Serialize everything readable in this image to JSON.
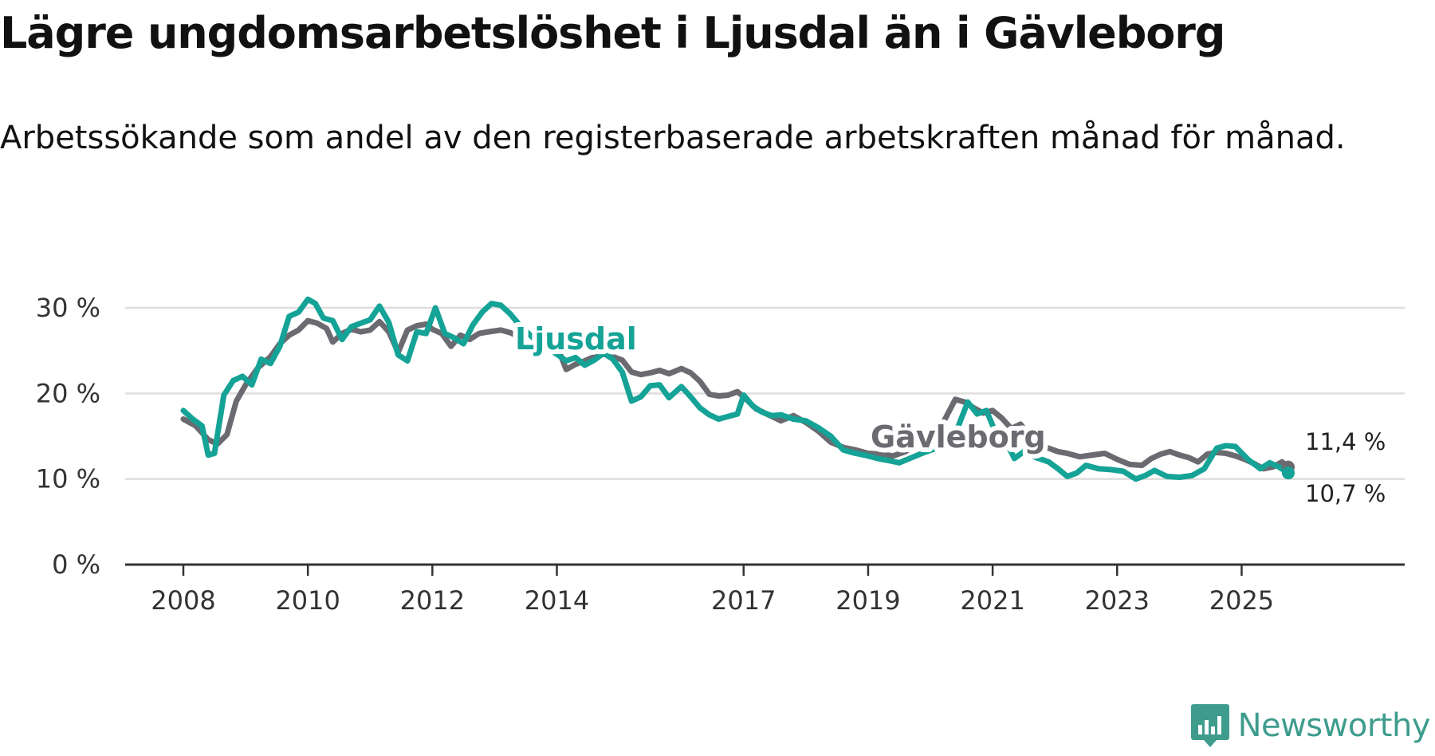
{
  "header": {
    "title": "Lägre ungdomsarbetslöshet i Ljusdal än i Gävleborg",
    "subtitle": "Arbetssökande som andel av den registerbaserade arbetskraften månad för månad."
  },
  "brand": {
    "name": "Newsworthy",
    "icon": "newsworthy-logo-icon",
    "color": "#3e9c8d"
  },
  "chart_data": {
    "type": "line",
    "title": "Lägre ungdomsarbetslöshet i Ljusdal än i Gävleborg",
    "subtitle": "Arbetssökande som andel av den registerbaserade arbetskraften månad för månad.",
    "xlabel": "",
    "ylabel": "",
    "xlim": [
      2008,
      2026.8
    ],
    "ylim": [
      0,
      30
    ],
    "grid": true,
    "x_ticks": [
      2008,
      2010,
      2012,
      2014,
      2017,
      2019,
      2021,
      2023,
      2025
    ],
    "x_tick_labels": [
      "2008",
      "2010",
      "2012",
      "2014",
      "2017",
      "2019",
      "2021",
      "2023",
      "2025"
    ],
    "y_ticks": [
      0,
      10,
      20,
      30
    ],
    "y_tick_labels": [
      "0 %",
      "10 %",
      "20 %",
      "30 %"
    ],
    "series": [
      {
        "name": "Gävleborg",
        "label": "Gävleborg",
        "color": "#6b6a71",
        "end_label": "11,4 %",
        "end_value": 11.4,
        "x": [
          2008.0,
          2008.2,
          2008.4,
          2008.55,
          2008.7,
          2008.85,
          2009.0,
          2009.2,
          2009.4,
          2009.55,
          2009.7,
          2009.85,
          2010.0,
          2010.15,
          2010.3,
          2010.4,
          2010.55,
          2010.7,
          2010.85,
          2011.0,
          2011.15,
          2011.3,
          2011.45,
          2011.6,
          2011.75,
          2011.9,
          2012.0,
          2012.15,
          2012.3,
          2012.45,
          2012.6,
          2012.75,
          2012.9,
          2013.1,
          2013.25,
          2013.4,
          2013.6,
          2013.8,
          2014.0,
          2014.15,
          2014.3,
          2014.45,
          2014.6,
          2014.75,
          2014.9,
          2015.05,
          2015.2,
          2015.35,
          2015.5,
          2015.65,
          2015.8,
          2016.0,
          2016.15,
          2016.3,
          2016.45,
          2016.6,
          2016.75,
          2016.9,
          2017.0,
          2017.2,
          2017.4,
          2017.6,
          2017.8,
          2018.0,
          2018.2,
          2018.4,
          2018.6,
          2018.8,
          2019.0,
          2019.2,
          2019.4,
          2019.6,
          2019.8,
          2020.0,
          2020.2,
          2020.4,
          2020.55,
          2020.7,
          2020.85,
          2021.0,
          2021.15,
          2021.3,
          2021.45,
          2021.6,
          2021.75,
          2021.9,
          2022.05,
          2022.2,
          2022.4,
          2022.6,
          2022.8,
          2023.0,
          2023.2,
          2023.4,
          2023.55,
          2023.7,
          2023.85,
          2024.0,
          2024.15,
          2024.3,
          2024.45,
          2024.6,
          2024.75,
          2024.9,
          2025.05,
          2025.2,
          2025.35,
          2025.5,
          2025.65,
          2025.75
        ],
        "values": [
          17.0,
          16.2,
          14.6,
          14.1,
          15.2,
          19.1,
          21.0,
          23.0,
          24.3,
          25.8,
          26.8,
          27.4,
          28.5,
          28.2,
          27.6,
          26.0,
          27.0,
          27.5,
          27.2,
          27.4,
          28.4,
          27.2,
          24.8,
          27.4,
          27.9,
          28.1,
          27.5,
          27.0,
          25.5,
          26.8,
          26.3,
          27.0,
          27.2,
          27.4,
          27.1,
          26.6,
          25.6,
          25.3,
          25.6,
          22.8,
          23.4,
          23.8,
          24.3,
          24.6,
          24.3,
          23.9,
          22.5,
          22.2,
          22.4,
          22.7,
          22.3,
          22.9,
          22.4,
          21.4,
          19.9,
          19.7,
          19.8,
          20.2,
          19.6,
          18.2,
          17.5,
          16.8,
          17.4,
          16.6,
          15.6,
          14.3,
          13.7,
          13.4,
          13.0,
          12.9,
          12.7,
          13.2,
          14.3,
          15.2,
          16.5,
          19.3,
          19.0,
          18.3,
          17.7,
          18.0,
          17.1,
          15.9,
          16.4,
          15.0,
          13.9,
          13.6,
          13.2,
          13.0,
          12.6,
          12.8,
          13.0,
          12.3,
          11.7,
          11.6,
          12.4,
          12.9,
          13.2,
          12.8,
          12.5,
          12.0,
          12.9,
          13.1,
          13.0,
          12.7,
          12.3,
          11.8,
          11.2,
          11.4,
          12.0,
          11.4
        ]
      },
      {
        "name": "Ljusdal",
        "label": "Ljusdal",
        "color": "#14a396",
        "end_label": "10,7 %",
        "end_value": 10.7,
        "x": [
          2008.0,
          2008.15,
          2008.3,
          2008.4,
          2008.5,
          2008.65,
          2008.8,
          2008.95,
          2009.1,
          2009.25,
          2009.4,
          2009.55,
          2009.7,
          2009.85,
          2010.0,
          2010.12,
          2010.25,
          2010.4,
          2010.55,
          2010.7,
          2010.85,
          2011.0,
          2011.15,
          2011.3,
          2011.45,
          2011.6,
          2011.75,
          2011.9,
          2012.05,
          2012.2,
          2012.35,
          2012.5,
          2012.65,
          2012.8,
          2012.95,
          2013.1,
          2013.25,
          2013.4,
          2013.6,
          2013.8,
          2014.0,
          2014.15,
          2014.3,
          2014.45,
          2014.6,
          2014.75,
          2014.9,
          2015.05,
          2015.2,
          2015.35,
          2015.5,
          2015.65,
          2015.8,
          2016.0,
          2016.15,
          2016.3,
          2016.45,
          2016.6,
          2016.75,
          2016.9,
          2017.0,
          2017.15,
          2017.3,
          2017.45,
          2017.6,
          2017.8,
          2018.0,
          2018.2,
          2018.4,
          2018.6,
          2018.8,
          2019.0,
          2019.15,
          2019.3,
          2019.5,
          2019.7,
          2019.9,
          2020.1,
          2020.3,
          2020.45,
          2020.6,
          2020.75,
          2020.9,
          2021.05,
          2021.2,
          2021.35,
          2021.5,
          2021.7,
          2021.9,
          2022.05,
          2022.2,
          2022.35,
          2022.5,
          2022.7,
          2022.9,
          2023.1,
          2023.3,
          2023.45,
          2023.6,
          2023.8,
          2024.0,
          2024.2,
          2024.4,
          2024.6,
          2024.75,
          2024.9,
          2025.1,
          2025.3,
          2025.45,
          2025.6,
          2025.75
        ],
        "values": [
          18.0,
          17.0,
          16.2,
          12.8,
          13.0,
          19.8,
          21.5,
          22.0,
          21.0,
          24.0,
          23.5,
          25.5,
          29.0,
          29.5,
          31.0,
          30.5,
          28.8,
          28.5,
          26.3,
          27.8,
          28.2,
          28.6,
          30.2,
          28.3,
          24.5,
          23.8,
          27.2,
          27.0,
          30.0,
          27.0,
          26.5,
          25.8,
          28.0,
          29.5,
          30.5,
          30.3,
          29.3,
          28.0,
          26.6,
          25.4,
          24.6,
          23.8,
          24.2,
          23.3,
          23.9,
          24.7,
          24.0,
          22.5,
          19.1,
          19.6,
          20.9,
          21.0,
          19.5,
          20.8,
          19.6,
          18.3,
          17.5,
          17.0,
          17.3,
          17.6,
          19.8,
          18.5,
          17.8,
          17.4,
          17.5,
          17.0,
          16.8,
          16.0,
          15.0,
          13.4,
          13.0,
          12.7,
          12.4,
          12.2,
          11.9,
          12.5,
          13.1,
          13.6,
          14.4,
          16.2,
          19.0,
          17.6,
          18.0,
          15.4,
          14.6,
          12.4,
          13.2,
          12.5,
          12.0,
          11.2,
          10.3,
          10.7,
          11.6,
          11.2,
          11.1,
          10.9,
          10.0,
          10.4,
          11.0,
          10.3,
          10.2,
          10.4,
          11.2,
          13.6,
          13.9,
          13.8,
          12.3,
          11.2,
          11.9,
          11.4,
          10.7
        ]
      }
    ]
  }
}
